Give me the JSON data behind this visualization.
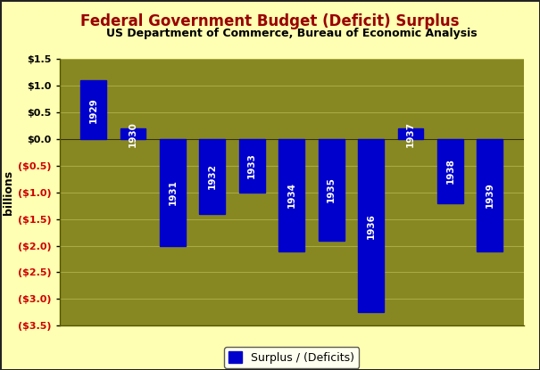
{
  "title": "Federal Government Budget (Deficit) Surplus",
  "subtitle": "US Department of Commerce, Bureau of Economic Analysis",
  "years": [
    "1929",
    "1930",
    "1931",
    "1932",
    "1933",
    "1934",
    "1935",
    "1936",
    "1937",
    "1938",
    "1939"
  ],
  "values": [
    1.1,
    0.2,
    -2.0,
    -1.4,
    -1.0,
    -2.1,
    -1.9,
    -3.25,
    0.2,
    -1.2,
    -2.1
  ],
  "bar_color": "#0000CC",
  "background_color": "#FFFFB3",
  "plot_bg_color": "#888822",
  "ylabel": "billions",
  "ylim": [
    -3.5,
    1.5
  ],
  "yticks": [
    1.5,
    1.0,
    0.5,
    0.0,
    -0.5,
    -1.0,
    -1.5,
    -2.0,
    -2.5,
    -3.0,
    -3.5
  ],
  "title_color": "#990000",
  "subtitle_color": "#000000",
  "ytick_color_pos": "#000000",
  "ytick_color_neg": "#CC0000",
  "legend_label": "Surplus / (Deficits)",
  "grid_color": "#AAAA44",
  "outer_border_color": "#222222"
}
